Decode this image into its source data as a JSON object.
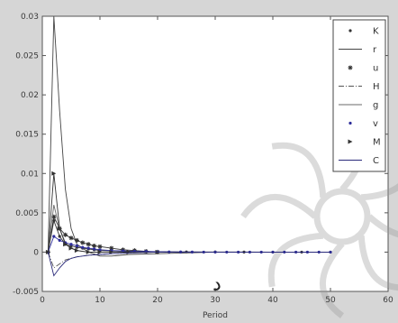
{
  "chart_data": {
    "type": "line",
    "title": "",
    "xlabel": "Period",
    "ylabel": "",
    "xlim": [
      0,
      60
    ],
    "ylim": [
      -0.005,
      0.03
    ],
    "xticks": [
      "0",
      "10",
      "20",
      "30",
      "40",
      "50",
      "60"
    ],
    "yticks": [
      "-0.005",
      "0",
      "0.005",
      "0.01",
      "0.015",
      "0.02",
      "0.025",
      "0.03"
    ],
    "grid": false,
    "legend_position": "top-right",
    "annotation": "د",
    "series": [
      {
        "name": "K",
        "marker": "dot",
        "color": "#333333",
        "x": [
          1,
          2,
          3,
          4,
          5,
          6,
          7,
          8,
          9,
          10,
          12,
          14,
          16,
          18,
          20,
          25,
          30,
          35,
          40,
          45,
          50
        ],
        "y": [
          0,
          0.004,
          0.002,
          0.001,
          0.0008,
          0.0006,
          0.0005,
          0.0004,
          0.0003,
          0.0002,
          0.00015,
          0.0001,
          8e-05,
          6e-05,
          5e-05,
          3e-05,
          2e-05,
          1e-05,
          0,
          0,
          0
        ]
      },
      {
        "name": "r",
        "marker": "none",
        "color": "#444444",
        "x": [
          1,
          2,
          3,
          4,
          5,
          6,
          8,
          10,
          12,
          15,
          20,
          25,
          30,
          40,
          50
        ],
        "y": [
          0,
          0.03,
          0.018,
          0.008,
          0.003,
          0.001,
          0,
          -0.0005,
          -0.0005,
          -0.0003,
          -0.0002,
          -0.0001,
          0,
          0,
          0
        ]
      },
      {
        "name": "u",
        "marker": "asterisk",
        "color": "#333333",
        "x": [
          1,
          2,
          3,
          4,
          5,
          6,
          7,
          8,
          9,
          10,
          12,
          14,
          16,
          18,
          20
        ],
        "y": [
          0,
          0.0045,
          0.003,
          0.0022,
          0.0018,
          0.0015,
          0.0012,
          0.001,
          0.0008,
          0.0007,
          0.0005,
          0.0003,
          0.0002,
          0.0001,
          0
        ]
      },
      {
        "name": "H",
        "marker": "dashdot",
        "color": "#555555",
        "x": [
          1,
          2,
          3,
          4,
          5,
          6,
          8,
          10,
          12,
          15,
          20,
          30,
          40,
          50
        ],
        "y": [
          0,
          -0.002,
          -0.0015,
          -0.001,
          -0.0008,
          -0.0006,
          -0.0004,
          -0.0003,
          -0.0002,
          -0.0001,
          0,
          0,
          0,
          0
        ]
      },
      {
        "name": "g",
        "marker": "none",
        "color": "#6a6a6a",
        "x": [
          1,
          2,
          3,
          4,
          5,
          6,
          8,
          10,
          12,
          15,
          20,
          30,
          40,
          50
        ],
        "y": [
          0,
          0.006,
          0.003,
          0.0012,
          0.0005,
          0.0002,
          0,
          0,
          0,
          0,
          0,
          0,
          0,
          0
        ]
      },
      {
        "name": "v",
        "marker": "dot",
        "color": "#2d2d9a",
        "x": [
          1,
          2,
          3,
          4,
          5,
          6,
          7,
          8,
          9,
          10,
          12,
          14,
          16,
          18,
          20,
          22,
          24,
          26,
          28,
          30,
          32,
          34,
          36,
          38,
          40,
          42,
          44,
          46,
          48,
          50
        ],
        "y": [
          0,
          0.002,
          0.0015,
          0.0012,
          0.001,
          0.0008,
          0.0006,
          0.0005,
          0.0004,
          0.0003,
          0.0002,
          0.00015,
          0.0001,
          8e-05,
          5e-05,
          3e-05,
          2e-05,
          1e-05,
          0,
          0,
          0,
          0,
          0,
          0,
          0,
          0,
          0,
          0,
          0,
          0
        ]
      },
      {
        "name": "M",
        "marker": "triangle",
        "color": "#333333",
        "x": [
          1,
          2,
          3,
          4,
          5,
          6,
          8,
          10,
          12,
          15,
          20
        ],
        "y": [
          0,
          0.01,
          0.003,
          0.001,
          0.0005,
          0.0002,
          0,
          0,
          0,
          0,
          0
        ]
      },
      {
        "name": "C",
        "marker": "none",
        "color": "#2a2a7a",
        "x": [
          1,
          2,
          3,
          4,
          5,
          6,
          7,
          8,
          10,
          12,
          15,
          20,
          25,
          30,
          40,
          50
        ],
        "y": [
          0,
          -0.003,
          -0.002,
          -0.0012,
          -0.0008,
          -0.0006,
          -0.0005,
          -0.0004,
          -0.0003,
          -0.0002,
          -0.0001,
          0,
          0,
          0,
          0,
          0
        ]
      }
    ]
  }
}
